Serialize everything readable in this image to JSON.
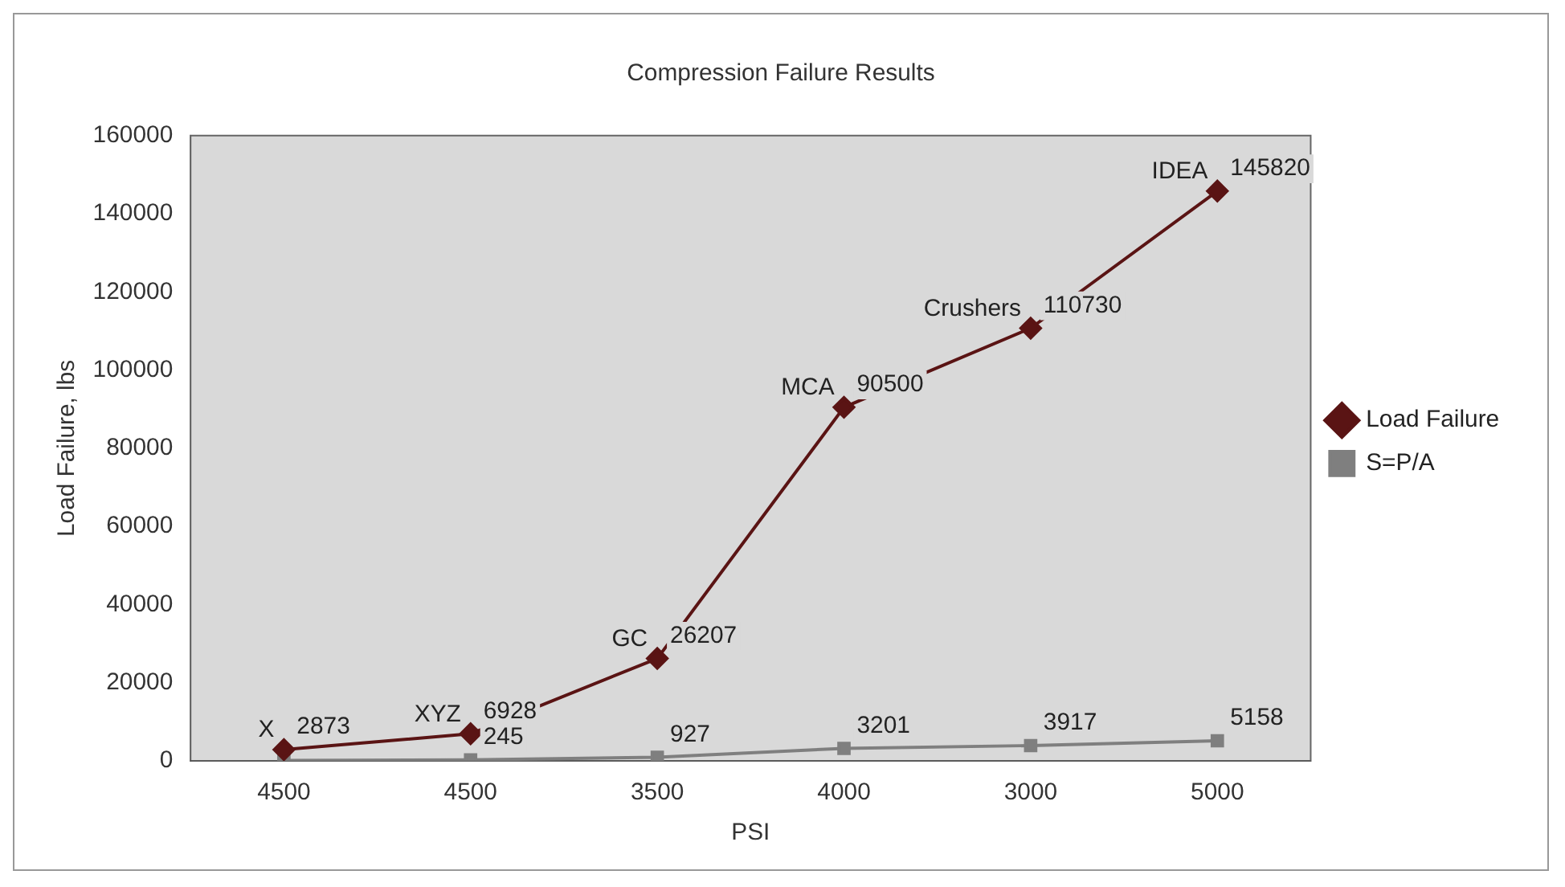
{
  "chart_data": {
    "type": "line",
    "title": "Compression Failure Results",
    "xlabel": "PSI",
    "ylabel": "Load Failure, lbs",
    "categories": [
      "4500",
      "4500",
      "3500",
      "4000",
      "3000",
      "5000"
    ],
    "series": [
      {
        "name": "Load Failure",
        "color": "#5a1414",
        "marker": "diamond",
        "values": [
          2873,
          6928,
          26207,
          90500,
          110730,
          145820
        ],
        "value_labels": [
          "2873",
          "6928",
          "26207",
          "90500",
          "110730",
          "145820"
        ]
      },
      {
        "name": "S=P/A",
        "color": "#7f7f7f",
        "marker": "square",
        "values": [
          100,
          245,
          927,
          3201,
          3917,
          5158
        ],
        "value_labels": [
          null,
          "245",
          "927",
          "3201",
          "3917",
          "5158"
        ]
      }
    ],
    "annotations": [
      {
        "text": "X",
        "x": "4500",
        "y": 2873
      },
      {
        "text": "XYZ",
        "y": 6928
      },
      {
        "text": "GC",
        "x": "3500",
        "y": 26207
      },
      {
        "text": "MCA",
        "x": "4000",
        "y": 90500
      },
      {
        "text": "Crushers",
        "x": "3000",
        "y": 110730
      },
      {
        "text": "IDEA",
        "x": "5000",
        "y": 145820
      }
    ],
    "ylim": [
      0,
      160000
    ],
    "yticks": [
      0,
      20000,
      40000,
      60000,
      80000,
      100000,
      120000,
      140000,
      160000
    ],
    "grid": false,
    "legend": "right",
    "line_style": "solid"
  }
}
